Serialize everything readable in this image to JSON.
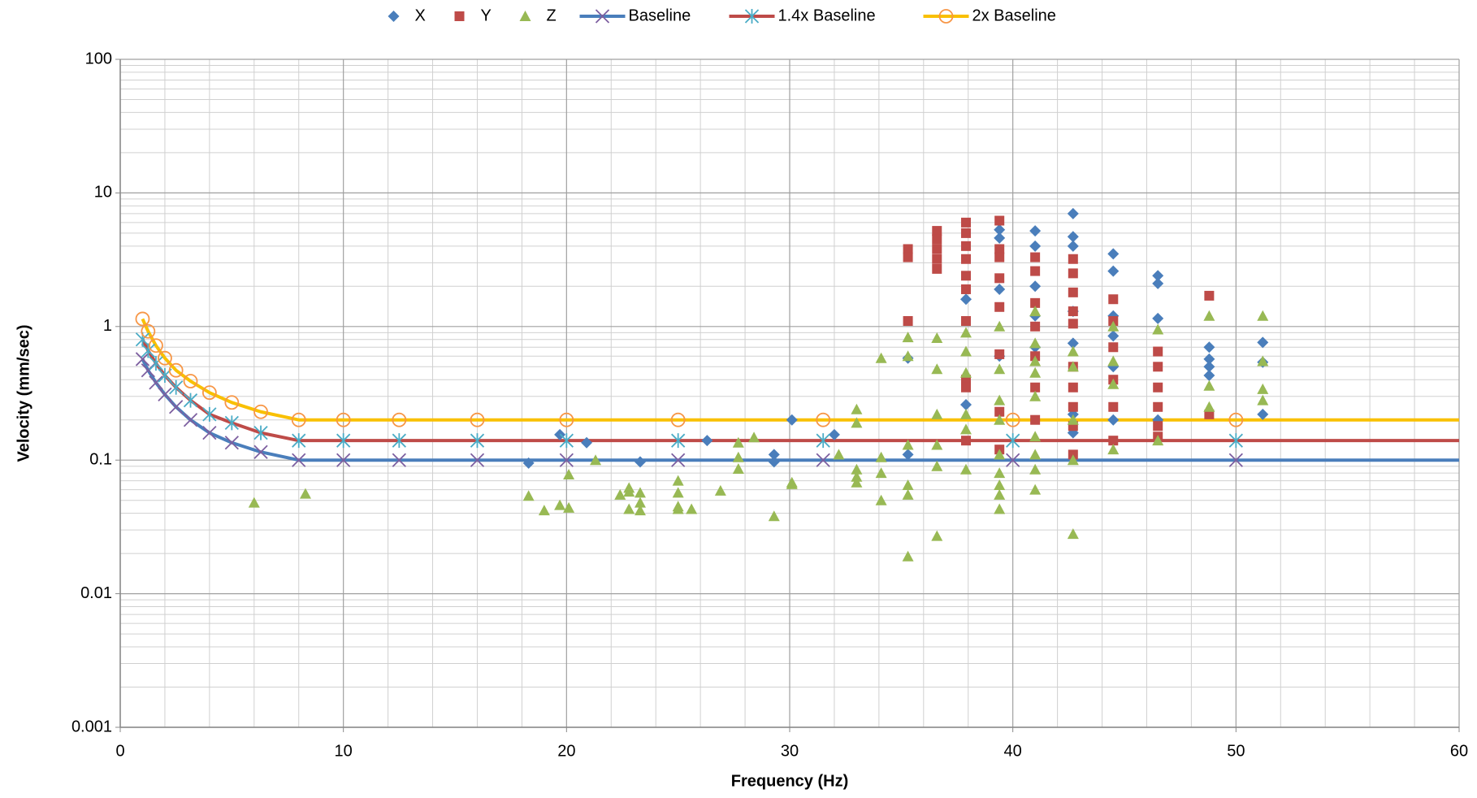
{
  "chart_data": {
    "type": "scatter",
    "x_label": "Frequency (Hz)",
    "y_label": "Velocity (mm/sec)",
    "xlim": [
      0,
      60
    ],
    "xticks": [
      0,
      10,
      20,
      30,
      40,
      50,
      60
    ],
    "ylim": [
      0.001,
      100
    ],
    "yticks": [
      0.001,
      0.01,
      0.1,
      1,
      10,
      100
    ],
    "y_scale": "log",
    "grid": true,
    "legend": "top",
    "series": [
      {
        "name": "X",
        "kind": "points",
        "marker": "diamond",
        "color": "#4a7ebb",
        "x": [
          19.7,
          20.9,
          18.3,
          23.3,
          26.3,
          29.3,
          29.3,
          30.1,
          32,
          35.3,
          35.3,
          37.9,
          37.9,
          39.4,
          39.4,
          39.4,
          39.4,
          41,
          41,
          41,
          41,
          41,
          42.7,
          42.7,
          42.7,
          42.7,
          42.7,
          42.7,
          42.7,
          44.5,
          44.5,
          44.5,
          44.5,
          44.5,
          44.5,
          46.5,
          46.5,
          46.5,
          46.5,
          48.8,
          48.8,
          48.8,
          48.8,
          51.2,
          51.2,
          51.2
        ],
        "values": [
          0.155,
          0.135,
          0.095,
          0.097,
          0.14,
          0.11,
          0.097,
          0.2,
          0.155,
          0.11,
          0.58,
          1.6,
          0.26,
          5.3,
          4.6,
          1.9,
          0.6,
          5.2,
          4,
          2,
          1.2,
          0.7,
          7,
          4.7,
          4,
          1.3,
          0.75,
          0.22,
          0.16,
          3.5,
          2.6,
          1.2,
          0.85,
          0.5,
          0.2,
          2.4,
          2.1,
          1.15,
          0.2,
          0.7,
          0.57,
          0.5,
          0.43,
          0.76,
          0.54,
          0.22
        ]
      },
      {
        "name": "Y",
        "kind": "points",
        "marker": "square",
        "color": "#be4b48",
        "x": [
          35.3,
          35.3,
          35.3,
          36.6,
          36.6,
          36.6,
          36.6,
          36.6,
          37.9,
          37.9,
          37.9,
          37.9,
          37.9,
          37.9,
          37.9,
          37.9,
          37.9,
          37.9,
          39.4,
          39.4,
          39.4,
          39.4,
          39.4,
          39.4,
          39.4,
          39.4,
          41,
          41,
          41,
          41,
          41,
          41,
          41,
          42.7,
          42.7,
          42.7,
          42.7,
          42.7,
          42.7,
          42.7,
          42.7,
          42.7,
          42.7,
          44.5,
          44.5,
          44.5,
          44.5,
          44.5,
          44.5,
          46.5,
          46.5,
          46.5,
          46.5,
          46.5,
          46.5,
          48.8,
          48.8
        ],
        "values": [
          3.8,
          3.3,
          1.1,
          5.2,
          4.5,
          3.8,
          3.2,
          2.7,
          6,
          5,
          4,
          3.2,
          2.4,
          1.9,
          1.1,
          0.4,
          0.35,
          0.14,
          6.2,
          3.8,
          3.3,
          2.3,
          1.4,
          0.62,
          0.23,
          0.12,
          3.3,
          2.6,
          1.5,
          1,
          0.6,
          0.35,
          0.2,
          3.2,
          2.5,
          1.8,
          1.3,
          1.05,
          0.5,
          0.35,
          0.25,
          0.18,
          0.11,
          1.6,
          1.1,
          0.7,
          0.4,
          0.25,
          0.14,
          0.65,
          0.5,
          0.35,
          0.25,
          0.18,
          0.15,
          1.7,
          0.22
        ]
      },
      {
        "name": "Z",
        "kind": "points",
        "marker": "triangle",
        "color": "#98b954",
        "x": [
          6,
          8.3,
          18.3,
          19,
          19.7,
          20.1,
          20.1,
          21.3,
          22.4,
          22.8,
          22.8,
          22.8,
          23.3,
          23.3,
          23.3,
          25,
          25,
          25,
          25,
          25.6,
          26.9,
          27.7,
          27.7,
          27.7,
          28.4,
          29.3,
          30.1,
          30.1,
          32.2,
          33,
          33,
          33,
          33,
          33,
          34.1,
          34.1,
          34.1,
          34.1,
          35.3,
          35.3,
          35.3,
          35.3,
          35.3,
          35.3,
          36.6,
          36.6,
          36.6,
          36.6,
          36.6,
          36.6,
          37.9,
          37.9,
          37.9,
          37.9,
          37.9,
          37.9,
          39.4,
          39.4,
          39.4,
          39.4,
          39.4,
          39.4,
          39.4,
          39.4,
          39.4,
          41,
          41,
          41,
          41,
          41,
          41,
          41,
          41,
          41,
          42.7,
          42.7,
          42.7,
          42.7,
          42.7,
          44.5,
          44.5,
          44.5,
          44.5,
          46.5,
          46.5,
          48.8,
          48.8,
          48.8,
          51.2,
          51.2,
          51.2,
          51.2
        ],
        "values": [
          0.048,
          0.056,
          0.054,
          0.042,
          0.046,
          0.044,
          0.078,
          0.1,
          0.055,
          0.043,
          0.062,
          0.058,
          0.057,
          0.048,
          0.042,
          0.07,
          0.057,
          0.045,
          0.043,
          0.043,
          0.059,
          0.135,
          0.105,
          0.086,
          0.148,
          0.038,
          0.068,
          0.066,
          0.11,
          0.24,
          0.19,
          0.085,
          0.075,
          0.068,
          0.58,
          0.105,
          0.08,
          0.05,
          0.83,
          0.6,
          0.13,
          0.065,
          0.055,
          0.019,
          0.82,
          0.48,
          0.22,
          0.13,
          0.09,
          0.027,
          0.9,
          0.65,
          0.45,
          0.22,
          0.17,
          0.085,
          1,
          0.48,
          0.28,
          0.2,
          0.11,
          0.08,
          0.065,
          0.055,
          0.043,
          1.3,
          0.75,
          0.55,
          0.45,
          0.3,
          0.15,
          0.11,
          0.085,
          0.06,
          0.65,
          0.5,
          0.2,
          0.1,
          0.028,
          1,
          0.55,
          0.37,
          0.12,
          0.95,
          0.14,
          1.2,
          0.36,
          0.25,
          1.2,
          0.55,
          0.34,
          0.28
        ]
      },
      {
        "name": "Baseline",
        "kind": "line",
        "marker": "x",
        "color": "#4a7ebb",
        "marker_color": "#7d5fa0",
        "x": [
          1,
          1.25,
          1.6,
          2,
          2.5,
          3.15,
          4,
          5,
          6.3,
          8,
          10,
          12.5,
          16,
          20,
          25,
          31.5,
          40,
          50
        ],
        "values": [
          0.57,
          0.47,
          0.38,
          0.31,
          0.25,
          0.2,
          0.16,
          0.135,
          0.115,
          0.1,
          0.1,
          0.1,
          0.1,
          0.1,
          0.1,
          0.1,
          0.1,
          0.1
        ]
      },
      {
        "name": "1.4x Baseline",
        "kind": "line",
        "marker": "star",
        "color": "#be4b48",
        "marker_color": "#4bacc6",
        "x": [
          1,
          1.25,
          1.6,
          2,
          2.5,
          3.15,
          4,
          5,
          6.3,
          8,
          10,
          12.5,
          16,
          20,
          25,
          31.5,
          40,
          50
        ],
        "values": [
          0.8,
          0.66,
          0.53,
          0.43,
          0.35,
          0.28,
          0.22,
          0.19,
          0.16,
          0.14,
          0.14,
          0.14,
          0.14,
          0.14,
          0.14,
          0.14,
          0.14,
          0.14
        ]
      },
      {
        "name": "2x Baseline",
        "kind": "line",
        "marker": "circle",
        "color": "#f9c000",
        "marker_color": "#f79646",
        "x": [
          1,
          1.25,
          1.6,
          2,
          2.5,
          3.15,
          4,
          5,
          6.3,
          8,
          10,
          12.5,
          16,
          20,
          25,
          31.5,
          40,
          50
        ],
        "values": [
          1.14,
          0.92,
          0.72,
          0.58,
          0.47,
          0.39,
          0.32,
          0.27,
          0.23,
          0.2,
          0.2,
          0.2,
          0.2,
          0.2,
          0.2,
          0.2,
          0.2,
          0.2
        ]
      }
    ]
  }
}
